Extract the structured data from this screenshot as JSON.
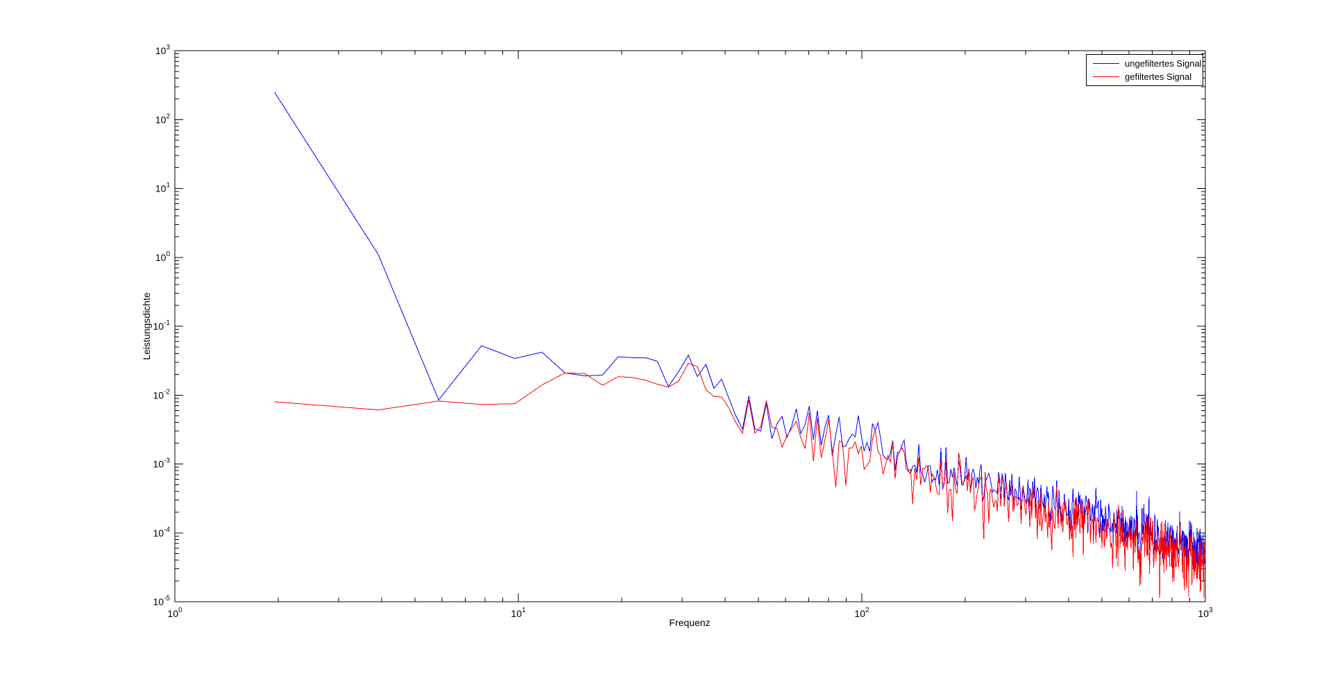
{
  "window": {
    "background": "#ffffff"
  },
  "chart_data": {
    "type": "line",
    "title": "",
    "xlabel": "Frequenz",
    "ylabel": "Leistungsdichte",
    "x_scale": "log",
    "y_scale": "log",
    "xlim": [
      1,
      1000
    ],
    "ylim": [
      1e-05,
      1000
    ],
    "x_tick_exponents": [
      0,
      1,
      2,
      3
    ],
    "y_tick_exponents": [
      3,
      2,
      1,
      0,
      -1,
      -2,
      -3,
      -4,
      -5
    ],
    "grid": false,
    "axis_color": "#000000",
    "legend": {
      "position": "top-right",
      "entries": [
        {
          "label": "ungefiltertes Signal",
          "color": "#0000ff"
        },
        {
          "label": "gefiltertes Signal",
          "color": "#ff0000"
        }
      ]
    },
    "tail_common": {
      "comment_visible_in_chart": "dense noisy periodogram tail, points spaced delta_f apart up to 1000 Hz",
      "k_start": 25,
      "k_end": 512,
      "delta_f": 1.9531,
      "seed": 42,
      "shared_noise_decades": 0.25
    },
    "series": [
      {
        "name": "ungefiltertes Signal",
        "color": "#0000ff",
        "points": [
          [
            1.95,
            250
          ],
          [
            3.91,
            1.1
          ],
          [
            5.86,
            0.0085
          ],
          [
            7.81,
            0.052
          ],
          [
            9.77,
            0.034
          ],
          [
            11.72,
            0.042
          ],
          [
            13.67,
            0.021
          ],
          [
            15.63,
            0.019
          ],
          [
            17.58,
            0.0195
          ],
          [
            19.53,
            0.036
          ],
          [
            21.48,
            0.035
          ],
          [
            23.44,
            0.035
          ],
          [
            25.39,
            0.031
          ],
          [
            27.34,
            0.0133
          ],
          [
            29.3,
            0.022
          ],
          [
            31.25,
            0.038
          ],
          [
            33.2,
            0.0185
          ],
          [
            35.16,
            0.028
          ],
          [
            37.11,
            0.0125
          ],
          [
            39.06,
            0.017
          ],
          [
            41.02,
            0.009
          ],
          [
            42.97,
            0.005
          ],
          [
            44.92,
            0.0032
          ],
          [
            46.88,
            0.0097
          ]
        ],
        "tail": {
          "ref_f": 50,
          "ref_value": 0.0055,
          "log_slope": -1.55,
          "noise_decades": 0.15,
          "spike_prob": 0.07,
          "spike_decades": 0.25,
          "dip_prob": 0,
          "dip_decades": 0
        }
      },
      {
        "name": "gefiltertes Signal",
        "color": "#ff0000",
        "points": [
          [
            1.95,
            0.008
          ],
          [
            3.91,
            0.0061
          ],
          [
            5.86,
            0.0082
          ],
          [
            7.81,
            0.0073
          ],
          [
            9.77,
            0.0075
          ],
          [
            11.72,
            0.014
          ],
          [
            13.67,
            0.021
          ],
          [
            15.63,
            0.0205
          ],
          [
            17.58,
            0.0139
          ],
          [
            19.53,
            0.0185
          ],
          [
            21.48,
            0.018
          ],
          [
            23.44,
            0.0165
          ],
          [
            25.39,
            0.0144
          ],
          [
            27.34,
            0.013
          ],
          [
            29.3,
            0.016
          ],
          [
            31.25,
            0.029
          ],
          [
            33.2,
            0.026
          ],
          [
            35.16,
            0.012
          ],
          [
            37.11,
            0.0095
          ],
          [
            39.06,
            0.0094
          ],
          [
            41.02,
            0.0065
          ],
          [
            42.97,
            0.004
          ],
          [
            44.92,
            0.0028
          ],
          [
            46.88,
            0.0085
          ]
        ],
        "tail": {
          "ref_f": 50,
          "ref_value": 0.0045,
          "log_slope": -1.56,
          "noise_decades": 0.175,
          "spike_prob": 0,
          "spike_decades": 0,
          "dip_prob": 0.12,
          "dip_decades": 0.45
        }
      }
    ]
  }
}
